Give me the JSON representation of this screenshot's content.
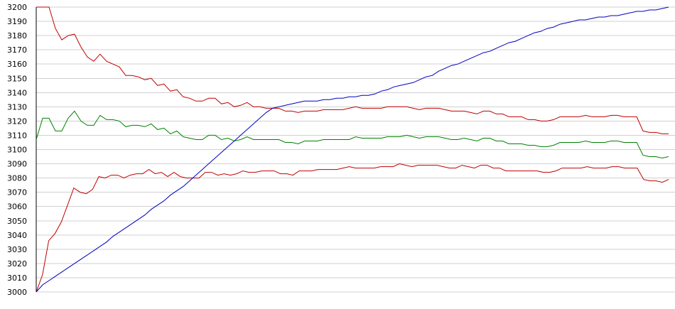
{
  "chart_data": {
    "type": "line",
    "title": "",
    "xlabel": "",
    "ylabel": "",
    "ylim": [
      3000,
      3200
    ],
    "y_ticks": [
      "3000",
      "3010",
      "3020",
      "3030",
      "3040",
      "3050",
      "3060",
      "3070",
      "3080",
      "3090",
      "3100",
      "3110",
      "3120",
      "3130",
      "3140",
      "3150",
      "3160",
      "3170",
      "3180",
      "3190",
      "3200"
    ],
    "grid": "horizontal",
    "legend": "none",
    "colors": {
      "grid": "#d0d0d0",
      "axis": "#000000"
    },
    "series": [
      {
        "color": "#c00000",
        "values": [
          3200,
          3200,
          3200,
          3185,
          3177,
          3180,
          3181,
          3172,
          3165,
          3162,
          3167,
          3162,
          3160,
          3158,
          3152,
          3152,
          3151,
          3149,
          3150,
          3145,
          3146,
          3141,
          3142,
          3137,
          3136,
          3134,
          3134,
          3136,
          3136,
          3132,
          3133,
          3130,
          3131,
          3133,
          3130,
          3130,
          3129,
          3129,
          3129,
          3127,
          3127,
          3126,
          3127,
          3127,
          3127,
          3128,
          3128,
          3128,
          3128,
          3129,
          3130,
          3129,
          3129,
          3129,
          3129,
          3130,
          3130,
          3130,
          3130,
          3129,
          3128,
          3129,
          3129,
          3129,
          3128,
          3127,
          3127,
          3127,
          3126,
          3125,
          3127,
          3127,
          3125,
          3125,
          3123,
          3123,
          3123,
          3121,
          3121,
          3120,
          3120,
          3121,
          3123,
          3123,
          3123,
          3123,
          3124,
          3123,
          3123,
          3123,
          3124,
          3124,
          3123,
          3123,
          3123,
          3113,
          3112,
          3112,
          3111,
          3111
        ]
      },
      {
        "color": "#008000",
        "values": [
          3107,
          3122,
          3122,
          3113,
          3113,
          3122,
          3127,
          3120,
          3117,
          3117,
          3124,
          3121,
          3121,
          3120,
          3116,
          3117,
          3117,
          3116,
          3118,
          3114,
          3115,
          3111,
          3113,
          3109,
          3108,
          3107,
          3107,
          3110,
          3110,
          3107,
          3108,
          3106,
          3107,
          3109,
          3107,
          3107,
          3107,
          3107,
          3107,
          3105,
          3105,
          3104,
          3106,
          3106,
          3106,
          3107,
          3107,
          3107,
          3107,
          3107,
          3109,
          3108,
          3108,
          3108,
          3108,
          3109,
          3109,
          3109,
          3110,
          3109,
          3108,
          3109,
          3109,
          3109,
          3108,
          3107,
          3107,
          3108,
          3107,
          3106,
          3108,
          3108,
          3106,
          3106,
          3104,
          3104,
          3104,
          3103,
          3103,
          3102,
          3102,
          3103,
          3105,
          3105,
          3105,
          3105,
          3106,
          3105,
          3105,
          3105,
          3106,
          3106,
          3105,
          3105,
          3105,
          3096,
          3095,
          3095,
          3094,
          3095
        ]
      },
      {
        "color": "#c00000",
        "values": [
          3000,
          3012,
          3036,
          3041,
          3049,
          3061,
          3073,
          3070,
          3069,
          3072,
          3081,
          3080,
          3082,
          3082,
          3080,
          3082,
          3083,
          3083,
          3086,
          3083,
          3084,
          3081,
          3084,
          3081,
          3080,
          3080,
          3080,
          3084,
          3084,
          3082,
          3083,
          3082,
          3083,
          3085,
          3084,
          3084,
          3085,
          3085,
          3085,
          3083,
          3083,
          3082,
          3085,
          3085,
          3085,
          3086,
          3086,
          3086,
          3086,
          3087,
          3088,
          3087,
          3087,
          3087,
          3087,
          3088,
          3088,
          3088,
          3090,
          3089,
          3088,
          3089,
          3089,
          3089,
          3089,
          3088,
          3087,
          3087,
          3089,
          3088,
          3087,
          3089,
          3089,
          3087,
          3087,
          3085,
          3085,
          3085,
          3085,
          3085,
          3085,
          3084,
          3084,
          3085,
          3087,
          3087,
          3087,
          3087,
          3088,
          3087,
          3087,
          3087,
          3088,
          3088,
          3087,
          3087,
          3087,
          3079,
          3078,
          3078,
          3077,
          3079
        ]
      },
      {
        "color": "#0000c0",
        "values": [
          3000,
          3005,
          3008,
          3011,
          3014,
          3017,
          3020,
          3023,
          3026,
          3029,
          3032,
          3035,
          3039,
          3042,
          3045,
          3048,
          3051,
          3054,
          3058,
          3061,
          3064,
          3068,
          3071,
          3074,
          3078,
          3082,
          3086,
          3090,
          3094,
          3098,
          3102,
          3106,
          3110,
          3114,
          3118,
          3122,
          3126,
          3129,
          3130,
          3131,
          3132,
          3133,
          3134,
          3134,
          3134,
          3135,
          3135,
          3136,
          3136,
          3137,
          3137,
          3138,
          3138,
          3139,
          3141,
          3142,
          3144,
          3145,
          3146,
          3147,
          3149,
          3151,
          3152,
          3155,
          3157,
          3159,
          3160,
          3162,
          3164,
          3166,
          3168,
          3169,
          3171,
          3173,
          3175,
          3176,
          3178,
          3180,
          3182,
          3183,
          3185,
          3186,
          3188,
          3189,
          3190,
          3191,
          3191,
          3192,
          3193,
          3193,
          3194,
          3194,
          3195,
          3196,
          3197,
          3197,
          3198,
          3198,
          3199,
          3200
        ]
      }
    ]
  }
}
